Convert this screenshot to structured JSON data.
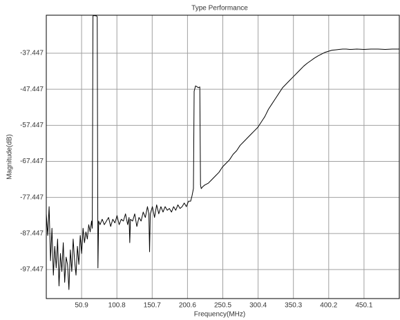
{
  "chart_data": {
    "type": "line",
    "title": "Type Performance",
    "x_label": "Frequency(MHz)",
    "y_label": "Magnitude(dB)",
    "xlim": [
      1,
      500
    ],
    "ylim": [
      -105.5,
      -26.9
    ],
    "xticks": [
      50.9,
      100.8,
      150.7,
      200.6,
      250.5,
      300.4,
      350.3,
      400.2,
      450.1
    ],
    "yticks": [
      -97.447,
      -87.447,
      -77.447,
      -67.447,
      -57.447,
      -47.447,
      -37.447
    ],
    "grid": true,
    "x": [
      1,
      3,
      5,
      7,
      9,
      11,
      13,
      15,
      17,
      19,
      21,
      23,
      25,
      27,
      29,
      31,
      33,
      35,
      37,
      39,
      41,
      43,
      45,
      47,
      49,
      51,
      53,
      55,
      57,
      59,
      61,
      63,
      65,
      66,
      67,
      68,
      72,
      73,
      74,
      75,
      77,
      80,
      83,
      86,
      89,
      92,
      95,
      98,
      101,
      104,
      107,
      110,
      113,
      116,
      118,
      119,
      120,
      123,
      126,
      129,
      132,
      135,
      138,
      141,
      144,
      146,
      147,
      148,
      151,
      154,
      157,
      160,
      163,
      166,
      169,
      172,
      175,
      178,
      181,
      184,
      187,
      190,
      193,
      196,
      199,
      202,
      205,
      207,
      209,
      210,
      212,
      216,
      218,
      219,
      220,
      222,
      225,
      230,
      235,
      240,
      245,
      250,
      255,
      260,
      265,
      270,
      275,
      280,
      285,
      290,
      295,
      300,
      305,
      310,
      315,
      320,
      325,
      330,
      335,
      340,
      345,
      350,
      355,
      360,
      365,
      370,
      375,
      380,
      385,
      390,
      395,
      400,
      405,
      410,
      415,
      420,
      425,
      430,
      440,
      450,
      460,
      470,
      480,
      490,
      500
    ],
    "series": [
      {
        "name": "Magnitude",
        "color": "#000000",
        "values": [
          -82,
          -88,
          -80,
          -95,
          -86,
          -99,
          -91,
          -97,
          -89,
          -102,
          -93,
          -98,
          -90,
          -101,
          -94,
          -96,
          -103,
          -92,
          -98,
          -89,
          -95,
          -99,
          -91,
          -96,
          -88,
          -93,
          -86,
          -90,
          -87,
          -89,
          -85,
          -87,
          -84,
          -86,
          -27.1,
          -27.0,
          -27.1,
          -27.3,
          -97,
          -84,
          -85,
          -83.5,
          -85,
          -84,
          -83,
          -85.5,
          -83.5,
          -84.5,
          -82.5,
          -85,
          -83.5,
          -84,
          -82,
          -85,
          -83,
          -90,
          -83.5,
          -84,
          -82,
          -85.5,
          -83,
          -84,
          -81.5,
          -83,
          -80,
          -82,
          -92.5,
          -82,
          -80,
          -83,
          -79.5,
          -82,
          -80,
          -81.5,
          -80,
          -81,
          -80.5,
          -81.5,
          -80,
          -81,
          -79.5,
          -80.5,
          -80,
          -79,
          -80,
          -78.5,
          -78.5,
          -77,
          -75,
          -48,
          -46.5,
          -47,
          -46.8,
          -74,
          -75,
          -74.5,
          -74,
          -73.5,
          -72.5,
          -71.5,
          -70.5,
          -69,
          -68,
          -67,
          -65.5,
          -64.5,
          -63,
          -62,
          -61,
          -60,
          -59,
          -58,
          -56.5,
          -55,
          -53,
          -51.5,
          -50,
          -48.5,
          -47,
          -46,
          -45,
          -44,
          -43,
          -42,
          -41,
          -40.2,
          -39.5,
          -38.8,
          -38.2,
          -37.7,
          -37.2,
          -36.9,
          -36.6,
          -36.5,
          -36.4,
          -36.3,
          -36.3,
          -36.4,
          -36.3,
          -36.4,
          -36.3,
          -36.3,
          -36.4,
          -36.3,
          -36.3
        ]
      }
    ]
  }
}
